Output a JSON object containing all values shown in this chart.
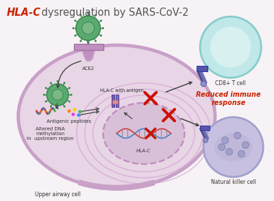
{
  "title_italic": "HLA-C",
  "title_rest": " dysregulation by SARS-CoV-2",
  "title_color_italic": "#cc2200",
  "title_color_rest": "#555555",
  "title_fontsize": 10.5,
  "bg_color": "#f7f2f5",
  "cell_bg": "#e8d5e5",
  "cell_border": "#c8a0c8",
  "cell_border_lw": 3.5,
  "nucleus_bg": "#d8c0d8",
  "nucleus_border": "#c090c0",
  "upper_airway_label": "Upper airway cell",
  "cd8_label": "CD8+ T cell",
  "nk_label": "Natural killer cell",
  "reduced_label": "Reduced immune\nresponse",
  "reduced_color": "#cc2200",
  "ace2_label": "ACE2",
  "antigenic_label": "Antigenic peptides",
  "dna_methyl_label": "Altered DNA\nmethylation\nin  upstream region",
  "hlac_antigen_label": "HLA-C with antigen",
  "hlac_label": "HLA-C",
  "virus_color_outer": "#3a8a50",
  "virus_color_inner": "#5aaa70",
  "cell_color_cd8_outer": "#88cccc",
  "cell_color_cd8_inner": "#c0e8e8",
  "cell_color_nk_outer": "#a0a0cc",
  "cell_color_nk_inner": "#c8c0e0",
  "arrow_color": "#444444",
  "cross_color": "#cc1100",
  "receptor_color_dark": "#4a4a90",
  "receptor_color_light": "#8080cc",
  "membrane_color": "#c090c0"
}
